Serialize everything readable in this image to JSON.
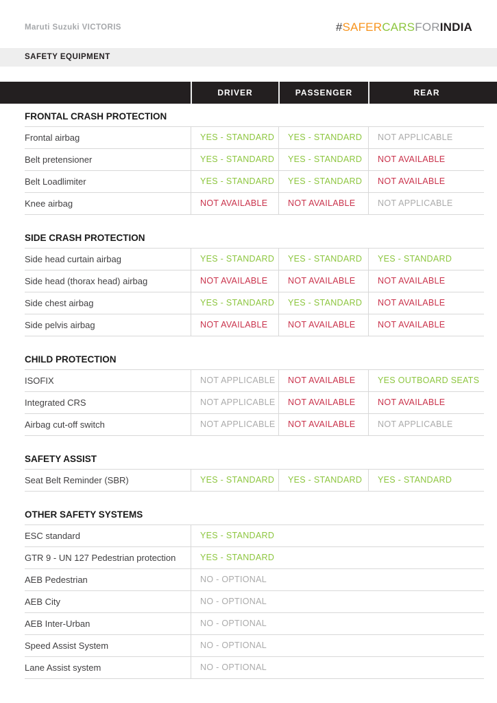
{
  "header": {
    "model_regular": "Maruti Suzuki",
    "model_bold": "VICTORIS",
    "logo": {
      "hash": "#",
      "safer": "SAFER",
      "cars": "CARS",
      "for": "FOR",
      "india": "INDIA",
      "colors": {
        "safer": "#F7941E",
        "cars": "#8DC63F",
        "for": "#939598",
        "india": "#231F20"
      }
    }
  },
  "section_bar": {
    "label": "SAFETY EQUIPMENT"
  },
  "table": {
    "columns": [
      "DRIVER",
      "PASSENGER",
      "REAR"
    ],
    "status_colors": {
      "yes": "#8DC63F",
      "no": "#C9324B",
      "not_applicable": "#ABABAB",
      "optional": "#ABABAB"
    },
    "sections": [
      {
        "title": "FRONTAL CRASH PROTECTION",
        "rows": [
          {
            "label": "Frontal airbag",
            "values": [
              {
                "text": "YES - STANDARD",
                "status": "yes"
              },
              {
                "text": "YES - STANDARD",
                "status": "yes"
              },
              {
                "text": "NOT APPLICABLE",
                "status": "na"
              }
            ]
          },
          {
            "label": "Belt pretensioner",
            "values": [
              {
                "text": "YES - STANDARD",
                "status": "yes"
              },
              {
                "text": "YES - STANDARD",
                "status": "yes"
              },
              {
                "text": "NOT AVAILABLE",
                "status": "no"
              }
            ]
          },
          {
            "label": "Belt Loadlimiter",
            "values": [
              {
                "text": "YES - STANDARD",
                "status": "yes"
              },
              {
                "text": "YES - STANDARD",
                "status": "yes"
              },
              {
                "text": "NOT AVAILABLE",
                "status": "no"
              }
            ]
          },
          {
            "label": "Knee airbag",
            "values": [
              {
                "text": "NOT AVAILABLE",
                "status": "no"
              },
              {
                "text": "NOT AVAILABLE",
                "status": "no"
              },
              {
                "text": "NOT APPLICABLE",
                "status": "na"
              }
            ]
          }
        ]
      },
      {
        "title": "SIDE CRASH PROTECTION",
        "rows": [
          {
            "label": "Side head curtain airbag",
            "values": [
              {
                "text": "YES - STANDARD",
                "status": "yes"
              },
              {
                "text": "YES - STANDARD",
                "status": "yes"
              },
              {
                "text": "YES - STANDARD",
                "status": "yes"
              }
            ]
          },
          {
            "label": "Side head (thorax head) airbag",
            "values": [
              {
                "text": "NOT AVAILABLE",
                "status": "no"
              },
              {
                "text": "NOT AVAILABLE",
                "status": "no"
              },
              {
                "text": "NOT AVAILABLE",
                "status": "no"
              }
            ]
          },
          {
            "label": "Side chest airbag",
            "values": [
              {
                "text": "YES - STANDARD",
                "status": "yes"
              },
              {
                "text": "YES - STANDARD",
                "status": "yes"
              },
              {
                "text": "NOT AVAILABLE",
                "status": "no"
              }
            ]
          },
          {
            "label": "Side pelvis airbag",
            "values": [
              {
                "text": "NOT AVAILABLE",
                "status": "no"
              },
              {
                "text": "NOT AVAILABLE",
                "status": "no"
              },
              {
                "text": "NOT AVAILABLE",
                "status": "no"
              }
            ]
          }
        ]
      },
      {
        "title": "CHILD PROTECTION",
        "rows": [
          {
            "label": "ISOFIX",
            "values": [
              {
                "text": "NOT APPLICABLE",
                "status": "na"
              },
              {
                "text": "NOT AVAILABLE",
                "status": "no"
              },
              {
                "text": "YES OUTBOARD SEATS",
                "status": "yes"
              }
            ]
          },
          {
            "label": "Integrated CRS",
            "values": [
              {
                "text": "NOT APPLICABLE",
                "status": "na"
              },
              {
                "text": "NOT AVAILABLE",
                "status": "no"
              },
              {
                "text": "NOT AVAILABLE",
                "status": "no"
              }
            ]
          },
          {
            "label": "Airbag cut-off switch",
            "values": [
              {
                "text": "NOT APPLICABLE",
                "status": "na"
              },
              {
                "text": "NOT AVAILABLE",
                "status": "no"
              },
              {
                "text": "NOT APPLICABLE",
                "status": "na"
              }
            ]
          }
        ]
      },
      {
        "title": "SAFETY ASSIST",
        "rows": [
          {
            "label": "Seat Belt Reminder (SBR)",
            "values": [
              {
                "text": "YES - STANDARD",
                "status": "yes"
              },
              {
                "text": "YES - STANDARD",
                "status": "yes"
              },
              {
                "text": "YES - STANDARD",
                "status": "yes"
              }
            ]
          }
        ]
      },
      {
        "title": "OTHER SAFETY SYSTEMS",
        "span": true,
        "rows": [
          {
            "label": "ESC standard",
            "values": [
              {
                "text": "YES - STANDARD",
                "status": "yes"
              }
            ]
          },
          {
            "label": "GTR 9 - UN 127 Pedestrian protection",
            "values": [
              {
                "text": "YES - STANDARD",
                "status": "yes"
              }
            ]
          },
          {
            "label": "AEB Pedestrian",
            "values": [
              {
                "text": "NO - OPTIONAL",
                "status": "opt"
              }
            ]
          },
          {
            "label": "AEB City",
            "values": [
              {
                "text": "NO - OPTIONAL",
                "status": "opt"
              }
            ]
          },
          {
            "label": "AEB Inter-Urban",
            "values": [
              {
                "text": "NO - OPTIONAL",
                "status": "opt"
              }
            ]
          },
          {
            "label": "Speed Assist System",
            "values": [
              {
                "text": "NO - OPTIONAL",
                "status": "opt"
              }
            ]
          },
          {
            "label": "Lane Assist system",
            "values": [
              {
                "text": "NO - OPTIONAL",
                "status": "opt"
              }
            ]
          }
        ]
      }
    ]
  }
}
